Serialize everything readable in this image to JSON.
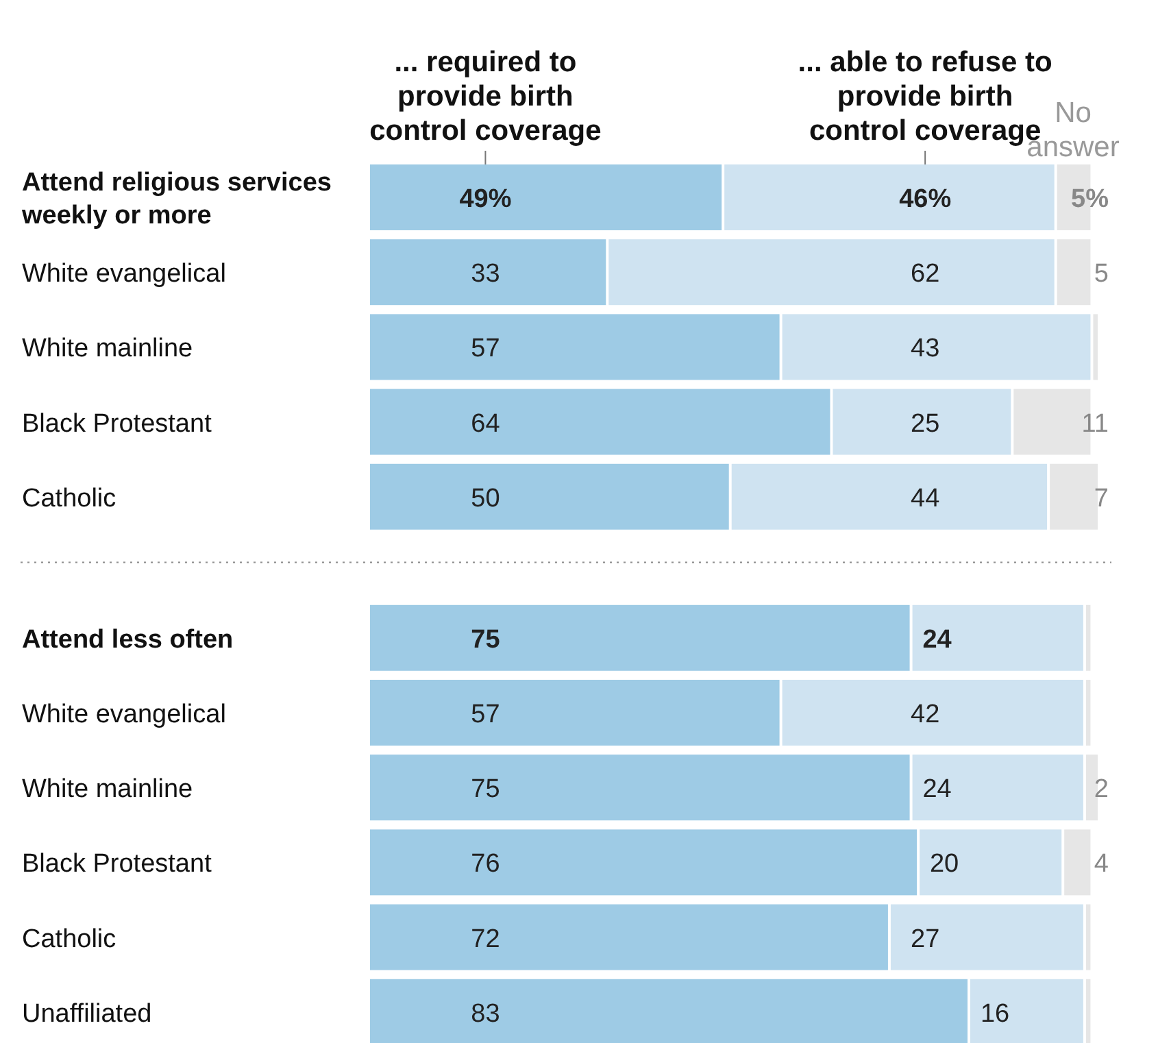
{
  "chart_data": [
    {
      "type": "bar",
      "orientation": "horizontal",
      "stacked": true,
      "legend": "top",
      "categories": [
        "Attend religious services weekly or more",
        "White evangelical",
        "White mainline",
        "Black Protestant",
        "Catholic"
      ],
      "series": [
        {
          "name": "... required to provide birth control coverage",
          "color": "#9ecbe5",
          "values": [
            49,
            33,
            57,
            64,
            50
          ],
          "value_labels": [
            "49%",
            "33",
            "57",
            "64",
            "50"
          ]
        },
        {
          "name": "... able to refuse to provide birth control coverage",
          "color": "#cfe3f1",
          "values": [
            46,
            62,
            43,
            25,
            44
          ],
          "value_labels": [
            "46%",
            "62",
            "43",
            "25",
            "44"
          ]
        },
        {
          "name": "No answer",
          "color": "#e6e6e6",
          "values": [
            5,
            5,
            1,
            11,
            7
          ],
          "value_labels": [
            "5%",
            "5",
            null,
            "11",
            "7"
          ]
        }
      ]
    },
    {
      "type": "bar",
      "orientation": "horizontal",
      "stacked": true,
      "categories": [
        "Attend less often",
        "White evangelical",
        "White mainline",
        "Black Protestant",
        "Catholic",
        "Unaffiliated"
      ],
      "series": [
        {
          "color": "#9ecbe5",
          "values": [
            75,
            57,
            75,
            76,
            72,
            83
          ],
          "value_labels": [
            "75",
            "57",
            "75",
            "76",
            "72",
            "83"
          ]
        },
        {
          "color": "#cfe3f1",
          "values": [
            24,
            42,
            24,
            20,
            27,
            16
          ],
          "value_labels": [
            "24",
            "42",
            "24",
            "20",
            "27",
            "16"
          ]
        },
        {
          "color": "#e6e6e6",
          "values": [
            1,
            1,
            2,
            4,
            1,
            1
          ],
          "value_labels": [
            null,
            null,
            "2",
            "4",
            null,
            null
          ]
        }
      ]
    }
  ]
}
